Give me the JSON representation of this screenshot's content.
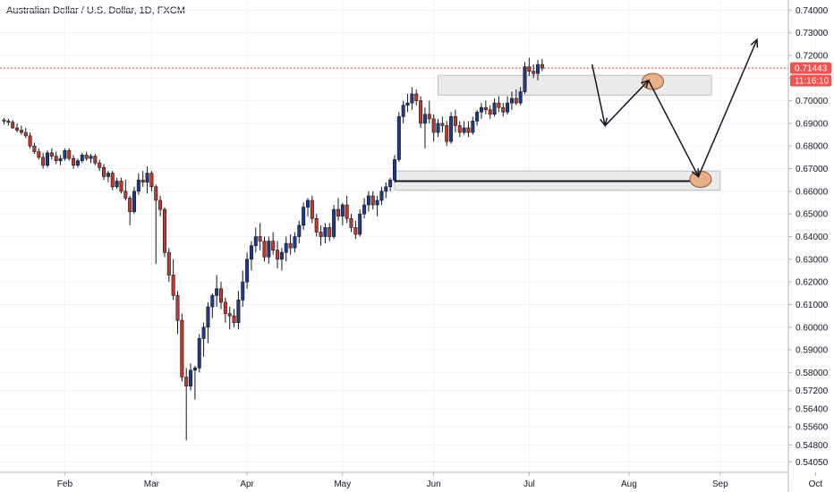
{
  "header": {
    "title": "Australian Dollar / U.S. Dollar, 1D, FXCM"
  },
  "price_tags": {
    "last_price": "0.71443",
    "countdown": "11:16:10"
  },
  "colors": {
    "up_candle": "#1f3a8a",
    "down_candle": "#c0392b",
    "wick": "#131722",
    "grid": "#f0f3fa",
    "axis_line": "#b2b5be",
    "price_line": "#e53935",
    "price_tag_bg": "#ef5350",
    "zone_fill": "#e7e7e7",
    "zone_stroke": "#bdbdbd",
    "marker_fill": "#e8b08a",
    "marker_stroke": "#9a5a2a"
  },
  "chart_data": {
    "type": "candlestick",
    "title": "Australian Dollar / U.S. Dollar, 1D, FXCM",
    "ylim": [
      0.5375,
      0.7425
    ],
    "y_ticks": [
      "0.74000",
      "0.73000",
      "0.72000",
      "0.71000",
      "0.70000",
      "0.69000",
      "0.68000",
      "0.67000",
      "0.66000",
      "0.65000",
      "0.64000",
      "0.63000",
      "0.62000",
      "0.61000",
      "0.60000",
      "0.59000",
      "0.58000",
      "0.57200",
      "0.56400",
      "0.55600",
      "0.54800",
      "0.54050"
    ],
    "x_ticks": [
      "Feb",
      "Mar",
      "Apr",
      "May",
      "Jun",
      "Jul",
      "Aug",
      "Sep",
      "Oct"
    ],
    "x_tick_index": [
      14,
      34,
      56,
      78,
      99,
      121,
      144,
      165,
      187
    ],
    "last_price": 0.71443,
    "grid": true,
    "series": [
      {
        "ohlc": [
          [
            0.6915,
            0.6925,
            0.6895,
            0.691
          ],
          [
            0.691,
            0.692,
            0.689,
            0.6905
          ],
          [
            0.6905,
            0.6915,
            0.6875,
            0.688
          ],
          [
            0.688,
            0.69,
            0.686,
            0.687
          ],
          [
            0.687,
            0.689,
            0.685,
            0.686
          ],
          [
            0.686,
            0.688,
            0.6835,
            0.6845
          ],
          [
            0.6845,
            0.686,
            0.679,
            0.68
          ],
          [
            0.68,
            0.6815,
            0.6765,
            0.6775
          ],
          [
            0.6775,
            0.679,
            0.674,
            0.675
          ],
          [
            0.675,
            0.677,
            0.67,
            0.6715
          ],
          [
            0.6715,
            0.678,
            0.6705,
            0.677
          ],
          [
            0.677,
            0.679,
            0.674,
            0.6755
          ],
          [
            0.6755,
            0.6775,
            0.672,
            0.6735
          ],
          [
            0.6735,
            0.676,
            0.6715,
            0.6745
          ],
          [
            0.6745,
            0.679,
            0.6735,
            0.678
          ],
          [
            0.678,
            0.679,
            0.6735,
            0.6745
          ],
          [
            0.6745,
            0.676,
            0.67,
            0.6715
          ],
          [
            0.6715,
            0.6745,
            0.6705,
            0.6735
          ],
          [
            0.6735,
            0.677,
            0.6725,
            0.676
          ],
          [
            0.676,
            0.6775,
            0.6735,
            0.6745
          ],
          [
            0.6745,
            0.6765,
            0.6725,
            0.6755
          ],
          [
            0.6755,
            0.6765,
            0.6715,
            0.6725
          ],
          [
            0.6725,
            0.674,
            0.669,
            0.6705
          ],
          [
            0.6705,
            0.672,
            0.665,
            0.6665
          ],
          [
            0.6665,
            0.669,
            0.664,
            0.668
          ],
          [
            0.668,
            0.669,
            0.6605,
            0.662
          ],
          [
            0.662,
            0.666,
            0.661,
            0.6645
          ],
          [
            0.6645,
            0.666,
            0.659,
            0.66
          ],
          [
            0.66,
            0.665,
            0.656,
            0.657
          ],
          [
            0.657,
            0.658,
            0.645,
            0.651
          ],
          [
            0.651,
            0.662,
            0.65,
            0.66
          ],
          [
            0.66,
            0.668,
            0.6585,
            0.665
          ],
          [
            0.665,
            0.669,
            0.662,
            0.664
          ],
          [
            0.664,
            0.671,
            0.659,
            0.668
          ],
          [
            0.668,
            0.669,
            0.66,
            0.662
          ],
          [
            0.662,
            0.663,
            0.628,
            0.656
          ],
          [
            0.656,
            0.658,
            0.649,
            0.652
          ],
          [
            0.652,
            0.653,
            0.631,
            0.633
          ],
          [
            0.633,
            0.635,
            0.62,
            0.623
          ],
          [
            0.623,
            0.63,
            0.612,
            0.614
          ],
          [
            0.614,
            0.616,
            0.597,
            0.603
          ],
          [
            0.603,
            0.606,
            0.576,
            0.578
          ],
          [
            0.578,
            0.582,
            0.55,
            0.574
          ],
          [
            0.574,
            0.584,
            0.572,
            0.581
          ],
          [
            0.581,
            0.583,
            0.568,
            0.582
          ],
          [
            0.582,
            0.597,
            0.58,
            0.595
          ],
          [
            0.595,
            0.602,
            0.587,
            0.6
          ],
          [
            0.6,
            0.611,
            0.593,
            0.609
          ],
          [
            0.609,
            0.615,
            0.604,
            0.614
          ],
          [
            0.614,
            0.623,
            0.609,
            0.617
          ],
          [
            0.617,
            0.62,
            0.608,
            0.611
          ],
          [
            0.611,
            0.613,
            0.602,
            0.606
          ],
          [
            0.606,
            0.609,
            0.599,
            0.605
          ],
          [
            0.605,
            0.608,
            0.6,
            0.602
          ],
          [
            0.602,
            0.616,
            0.599,
            0.612
          ],
          [
            0.612,
            0.625,
            0.609,
            0.62
          ],
          [
            0.62,
            0.633,
            0.617,
            0.63
          ],
          [
            0.63,
            0.638,
            0.625,
            0.636
          ],
          [
            0.636,
            0.644,
            0.633,
            0.64
          ],
          [
            0.64,
            0.646,
            0.634,
            0.638
          ],
          [
            0.638,
            0.64,
            0.629,
            0.631
          ],
          [
            0.631,
            0.64,
            0.628,
            0.638
          ],
          [
            0.638,
            0.642,
            0.632,
            0.634
          ],
          [
            0.634,
            0.638,
            0.626,
            0.63
          ],
          [
            0.63,
            0.635,
            0.625,
            0.633
          ],
          [
            0.633,
            0.64,
            0.629,
            0.637
          ],
          [
            0.637,
            0.641,
            0.632,
            0.635
          ],
          [
            0.635,
            0.642,
            0.633,
            0.64
          ],
          [
            0.64,
            0.647,
            0.637,
            0.645
          ],
          [
            0.645,
            0.655,
            0.643,
            0.653
          ],
          [
            0.653,
            0.657,
            0.649,
            0.656
          ],
          [
            0.656,
            0.658,
            0.646,
            0.648
          ],
          [
            0.648,
            0.65,
            0.64,
            0.642
          ],
          [
            0.642,
            0.645,
            0.636,
            0.64
          ],
          [
            0.64,
            0.646,
            0.637,
            0.644
          ],
          [
            0.644,
            0.646,
            0.638,
            0.64
          ],
          [
            0.64,
            0.654,
            0.639,
            0.652
          ],
          [
            0.652,
            0.657,
            0.647,
            0.649
          ],
          [
            0.649,
            0.655,
            0.645,
            0.654
          ],
          [
            0.654,
            0.658,
            0.646,
            0.648
          ],
          [
            0.648,
            0.65,
            0.642,
            0.644
          ],
          [
            0.644,
            0.647,
            0.639,
            0.641
          ],
          [
            0.641,
            0.652,
            0.64,
            0.65
          ],
          [
            0.65,
            0.657,
            0.648,
            0.654
          ],
          [
            0.654,
            0.66,
            0.651,
            0.658
          ],
          [
            0.658,
            0.66,
            0.652,
            0.654
          ],
          [
            0.654,
            0.658,
            0.649,
            0.656
          ],
          [
            0.656,
            0.662,
            0.654,
            0.66
          ],
          [
            0.66,
            0.664,
            0.657,
            0.662
          ],
          [
            0.662,
            0.666,
            0.66,
            0.665
          ],
          [
            0.665,
            0.676,
            0.664,
            0.674
          ],
          [
            0.674,
            0.695,
            0.673,
            0.693
          ],
          [
            0.693,
            0.7,
            0.69,
            0.698
          ],
          [
            0.698,
            0.703,
            0.695,
            0.699
          ],
          [
            0.699,
            0.706,
            0.696,
            0.703
          ],
          [
            0.703,
            0.705,
            0.698,
            0.7
          ],
          [
            0.7,
            0.702,
            0.688,
            0.69
          ],
          [
            0.69,
            0.697,
            0.679,
            0.694
          ],
          [
            0.694,
            0.7,
            0.69,
            0.692
          ],
          [
            0.692,
            0.694,
            0.682,
            0.686
          ],
          [
            0.686,
            0.692,
            0.684,
            0.69
          ],
          [
            0.69,
            0.693,
            0.686,
            0.689
          ],
          [
            0.689,
            0.691,
            0.68,
            0.682
          ],
          [
            0.682,
            0.695,
            0.681,
            0.693
          ],
          [
            0.693,
            0.696,
            0.686,
            0.689
          ],
          [
            0.689,
            0.691,
            0.684,
            0.686
          ],
          [
            0.686,
            0.691,
            0.685,
            0.688
          ],
          [
            0.688,
            0.691,
            0.684,
            0.686
          ],
          [
            0.686,
            0.693,
            0.685,
            0.691
          ],
          [
            0.691,
            0.696,
            0.689,
            0.695
          ],
          [
            0.695,
            0.699,
            0.692,
            0.697
          ],
          [
            0.697,
            0.7,
            0.694,
            0.696
          ],
          [
            0.696,
            0.698,
            0.692,
            0.694
          ],
          [
            0.694,
            0.701,
            0.693,
            0.699
          ],
          [
            0.699,
            0.702,
            0.695,
            0.697
          ],
          [
            0.697,
            0.699,
            0.693,
            0.695
          ],
          [
            0.695,
            0.702,
            0.694,
            0.699
          ],
          [
            0.699,
            0.704,
            0.696,
            0.701
          ],
          [
            0.701,
            0.705,
            0.698,
            0.699
          ],
          [
            0.699,
            0.706,
            0.698,
            0.704
          ],
          [
            0.704,
            0.717,
            0.703,
            0.715
          ],
          [
            0.715,
            0.719,
            0.711,
            0.713
          ],
          [
            0.713,
            0.716,
            0.71,
            0.712
          ],
          [
            0.712,
            0.718,
            0.709,
            0.716
          ],
          [
            0.716,
            0.7185,
            0.713,
            0.7144
          ]
        ]
      }
    ],
    "annotations": {
      "zones": [
        {
          "label": "resistance-zone",
          "y_top": 0.7112,
          "y_bottom": 0.7025,
          "x_start": 100,
          "x_end": 163
        },
        {
          "label": "support-zone",
          "y_top": 0.669,
          "y_bottom": 0.6605,
          "x_start": 90,
          "x_end": 165
        }
      ],
      "support_line": {
        "y": 0.6645,
        "x_start": 90,
        "x_end": 163
      },
      "markers": [
        {
          "x": 149.5,
          "y": 0.7085
        },
        {
          "x": 160.5,
          "y": 0.6653
        }
      ],
      "projection_path": [
        [
          135.5,
          0.716
        ],
        [
          138.5,
          0.689
        ],
        [
          148.5,
          0.709
        ],
        [
          160.0,
          0.6665
        ],
        [
          173.5,
          0.727
        ]
      ]
    }
  }
}
